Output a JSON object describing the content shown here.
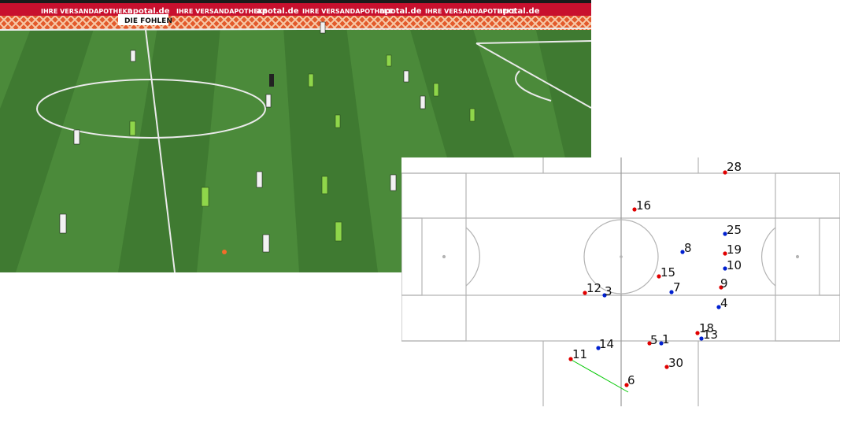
{
  "broadcast": {
    "ad_boards": [
      "IHRE VERSANDAPOTHEKE",
      "apotal.de",
      "IHRE VERSANDAPOTHEKE",
      "apotal.de",
      "IHRE VERSANDAPOTHEKE",
      "apotal.de",
      "IHRE VERSANDAPOTHEKE",
      "apotal.de"
    ],
    "banner_text": "DIE FOHLEN",
    "colors": {
      "grass_light": "#4b8a3a",
      "grass_dark": "#3f7a31",
      "ad_red": "#c8102e",
      "home_kit": "#f2f2f2",
      "away_kit": "#8fd64a"
    }
  },
  "tactical_map": {
    "colors": {
      "team_red": "#e00000",
      "team_blue": "#0020d0",
      "lines": "#b3b3b3",
      "pass": "#00c800"
    },
    "players": [
      {
        "label": "28",
        "team": "red"
      },
      {
        "label": "16",
        "team": "red"
      },
      {
        "label": "25",
        "team": "blue"
      },
      {
        "label": "8",
        "team": "blue"
      },
      {
        "label": "19",
        "team": "red"
      },
      {
        "label": "10",
        "team": "blue"
      },
      {
        "label": "15",
        "team": "red"
      },
      {
        "label": "9",
        "team": "red"
      },
      {
        "label": "12",
        "team": "red"
      },
      {
        "label": "3",
        "team": "blue"
      },
      {
        "label": "7",
        "team": "blue"
      },
      {
        "label": "4",
        "team": "blue"
      },
      {
        "label": "18",
        "team": "red"
      },
      {
        "label": "13",
        "team": "blue"
      },
      {
        "label": "5",
        "team": "red"
      },
      {
        "label": "1",
        "team": "blue"
      },
      {
        "label": "14",
        "team": "blue"
      },
      {
        "label": "11",
        "team": "red"
      },
      {
        "label": "30",
        "team": "red"
      },
      {
        "label": "6",
        "team": "red"
      }
    ]
  }
}
